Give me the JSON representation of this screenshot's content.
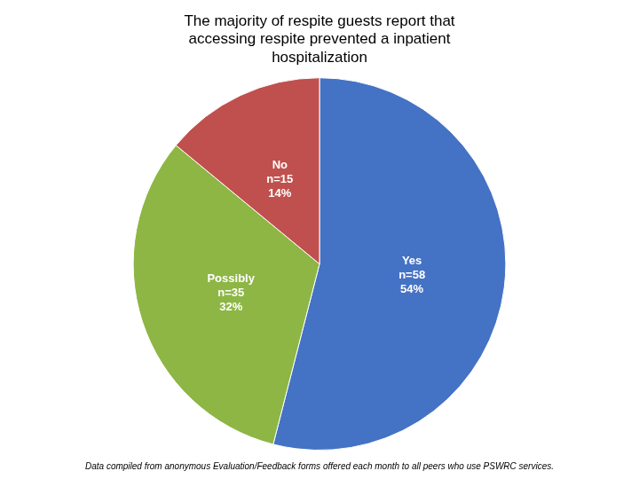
{
  "chart_data": {
    "type": "pie",
    "title": "The majority of respite guests report that\naccessing respite prevented a inpatient\nhospitalization",
    "categories": [
      "Yes",
      "Possibly",
      "No"
    ],
    "values": [
      54,
      32,
      14
    ],
    "value_labels": [
      "n=58\n54%",
      "n=35\n32%",
      "n=15\n14%"
    ],
    "data_labels": true,
    "colors": [
      "#4472C4",
      "#8DB645",
      "#C0504D"
    ],
    "legend": false,
    "annotations": [
      "Data compiled from anonymous Evaluation/Feedback forms offered each month to all peers who use PSWRC services."
    ]
  }
}
